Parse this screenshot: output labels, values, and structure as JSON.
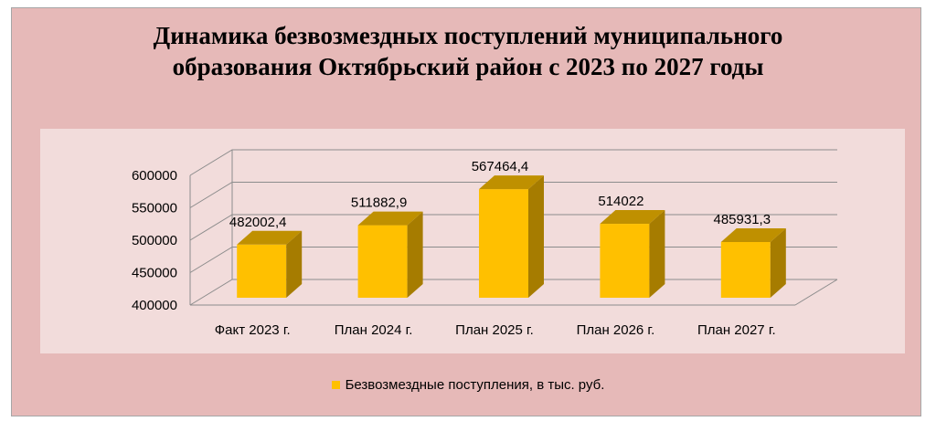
{
  "chart_data": {
    "type": "bar",
    "title_lines": [
      "Динамика безвозмездных поступлений муниципального",
      "образования Октябрьский район с 2023 по 2027 годы"
    ],
    "categories": [
      "Факт 2023 г.",
      "План 2024 г.",
      "План 2025 г.",
      "План 2026 г.",
      "План 2027 г."
    ],
    "series": [
      {
        "name": "Безвозмездные поступления, в тыс. руб.",
        "values": [
          482002.4,
          511882.9,
          567464.4,
          514022,
          485931.3
        ],
        "value_labels": [
          "482002,4",
          "511882,9",
          "567464,4",
          "514022",
          "485931,3"
        ],
        "color": "#ffc000"
      }
    ],
    "ylim": [
      400000,
      600000
    ],
    "yticks": [
      400000,
      450000,
      500000,
      550000,
      600000
    ],
    "ytick_labels": [
      "400000",
      "450000",
      "500000",
      "550000",
      "600000"
    ],
    "grid": true,
    "style": "3d",
    "legend_position": "bottom",
    "colors": {
      "frame_background": "#e6b9b8",
      "plot_background": "#f2dcdb",
      "bar_front": "#ffc000",
      "bar_side": "#a67c00",
      "bar_top": "#bf9000",
      "grid": "#8c8c8c"
    }
  }
}
